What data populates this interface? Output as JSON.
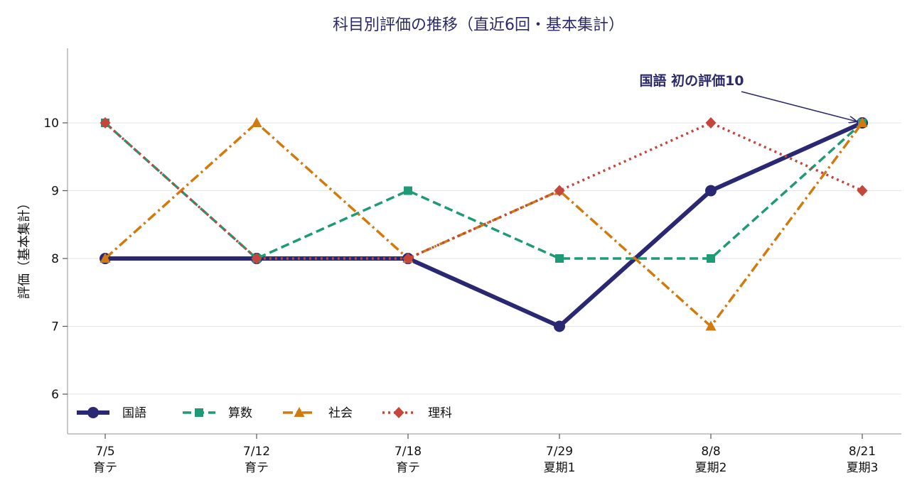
{
  "chart_data": {
    "type": "line",
    "title": "科目別評価の推移（直近6回・基本集計）",
    "ylabel": "評価（基本集計）",
    "xlabel": "",
    "x": [
      {
        "date": "7/5",
        "session": "育テ"
      },
      {
        "date": "7/12",
        "session": "育テ"
      },
      {
        "date": "7/18",
        "session": "育テ"
      },
      {
        "date": "7/29",
        "session": "夏期1"
      },
      {
        "date": "8/8",
        "session": "夏期2"
      },
      {
        "date": "8/21",
        "session": "夏期3"
      }
    ],
    "ylim": [
      5.45,
      11.05
    ],
    "yticks": [
      6,
      7,
      8,
      9,
      10
    ],
    "grid": "horizontal",
    "legend_position": "bottom-left",
    "series": [
      {
        "name": "国語",
        "values": [
          8,
          8,
          8,
          7,
          9,
          10
        ],
        "color": "#2b2873",
        "style": "solid",
        "marker": "circle"
      },
      {
        "name": "算数",
        "values": [
          10,
          8,
          9,
          8,
          8,
          10
        ],
        "color": "#1f9a77",
        "style": "dashed",
        "marker": "square"
      },
      {
        "name": "社会",
        "values": [
          8,
          10,
          8,
          9,
          7,
          10
        ],
        "color": "#d07a10",
        "style": "dashdot",
        "marker": "triangle"
      },
      {
        "name": "理科",
        "values": [
          10,
          8,
          8,
          9,
          10,
          9
        ],
        "color": "#c5463a",
        "style": "dotted",
        "marker": "diamond"
      }
    ],
    "annotation": {
      "text": "国語 初の評価10",
      "series": 0,
      "point_index": 5
    }
  }
}
